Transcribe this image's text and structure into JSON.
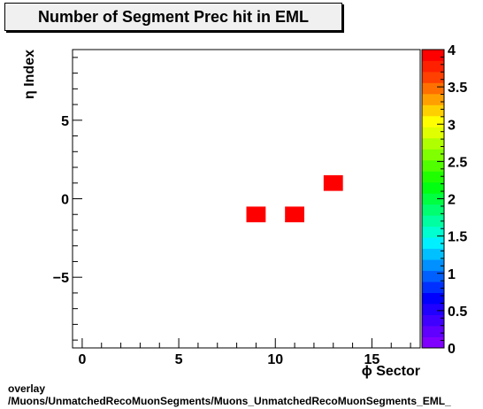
{
  "chart_data": {
    "type": "heatmap",
    "title": "Number of Segment Prec hit in EML",
    "xlabel": "ϕ Sector",
    "ylabel": "η Index",
    "xlim": [
      -0.5,
      17.5
    ],
    "ylim": [
      -9.5,
      9.5
    ],
    "x_ticks": [
      "0",
      "5",
      "10",
      "15"
    ],
    "y_ticks": [
      "−5",
      "0",
      "5"
    ],
    "cells": [
      {
        "x": 9,
        "y": -1,
        "value": 4
      },
      {
        "x": 11,
        "y": -1,
        "value": 4
      },
      {
        "x": 13,
        "y": 1,
        "value": 4
      }
    ],
    "z_range": [
      0,
      4
    ],
    "z_ticks": [
      "0",
      "0.5",
      "1",
      "1.5",
      "2",
      "2.5",
      "3",
      "3.5",
      "4"
    ],
    "palette": [
      "#8000ff",
      "#6000ff",
      "#4000ff",
      "#2000ff",
      "#0000ff",
      "#0030ff",
      "#0060ff",
      "#0090ff",
      "#00c0ff",
      "#00f0ff",
      "#00ffd0",
      "#00ffa0",
      "#00ff70",
      "#00ff40",
      "#00ff10",
      "#20ff00",
      "#50ff00",
      "#80ff00",
      "#b0ff00",
      "#e0ff00",
      "#ffff00",
      "#ffd000",
      "#ffa000",
      "#ff7000",
      "#ff4000",
      "#ff2000",
      "#ff0000"
    ]
  },
  "footer": {
    "line1": "overlay",
    "line2": "/Muons/UnmatchedRecoMuonSegments/Muons_UnmatchedRecoMuonSegments_EML_"
  }
}
